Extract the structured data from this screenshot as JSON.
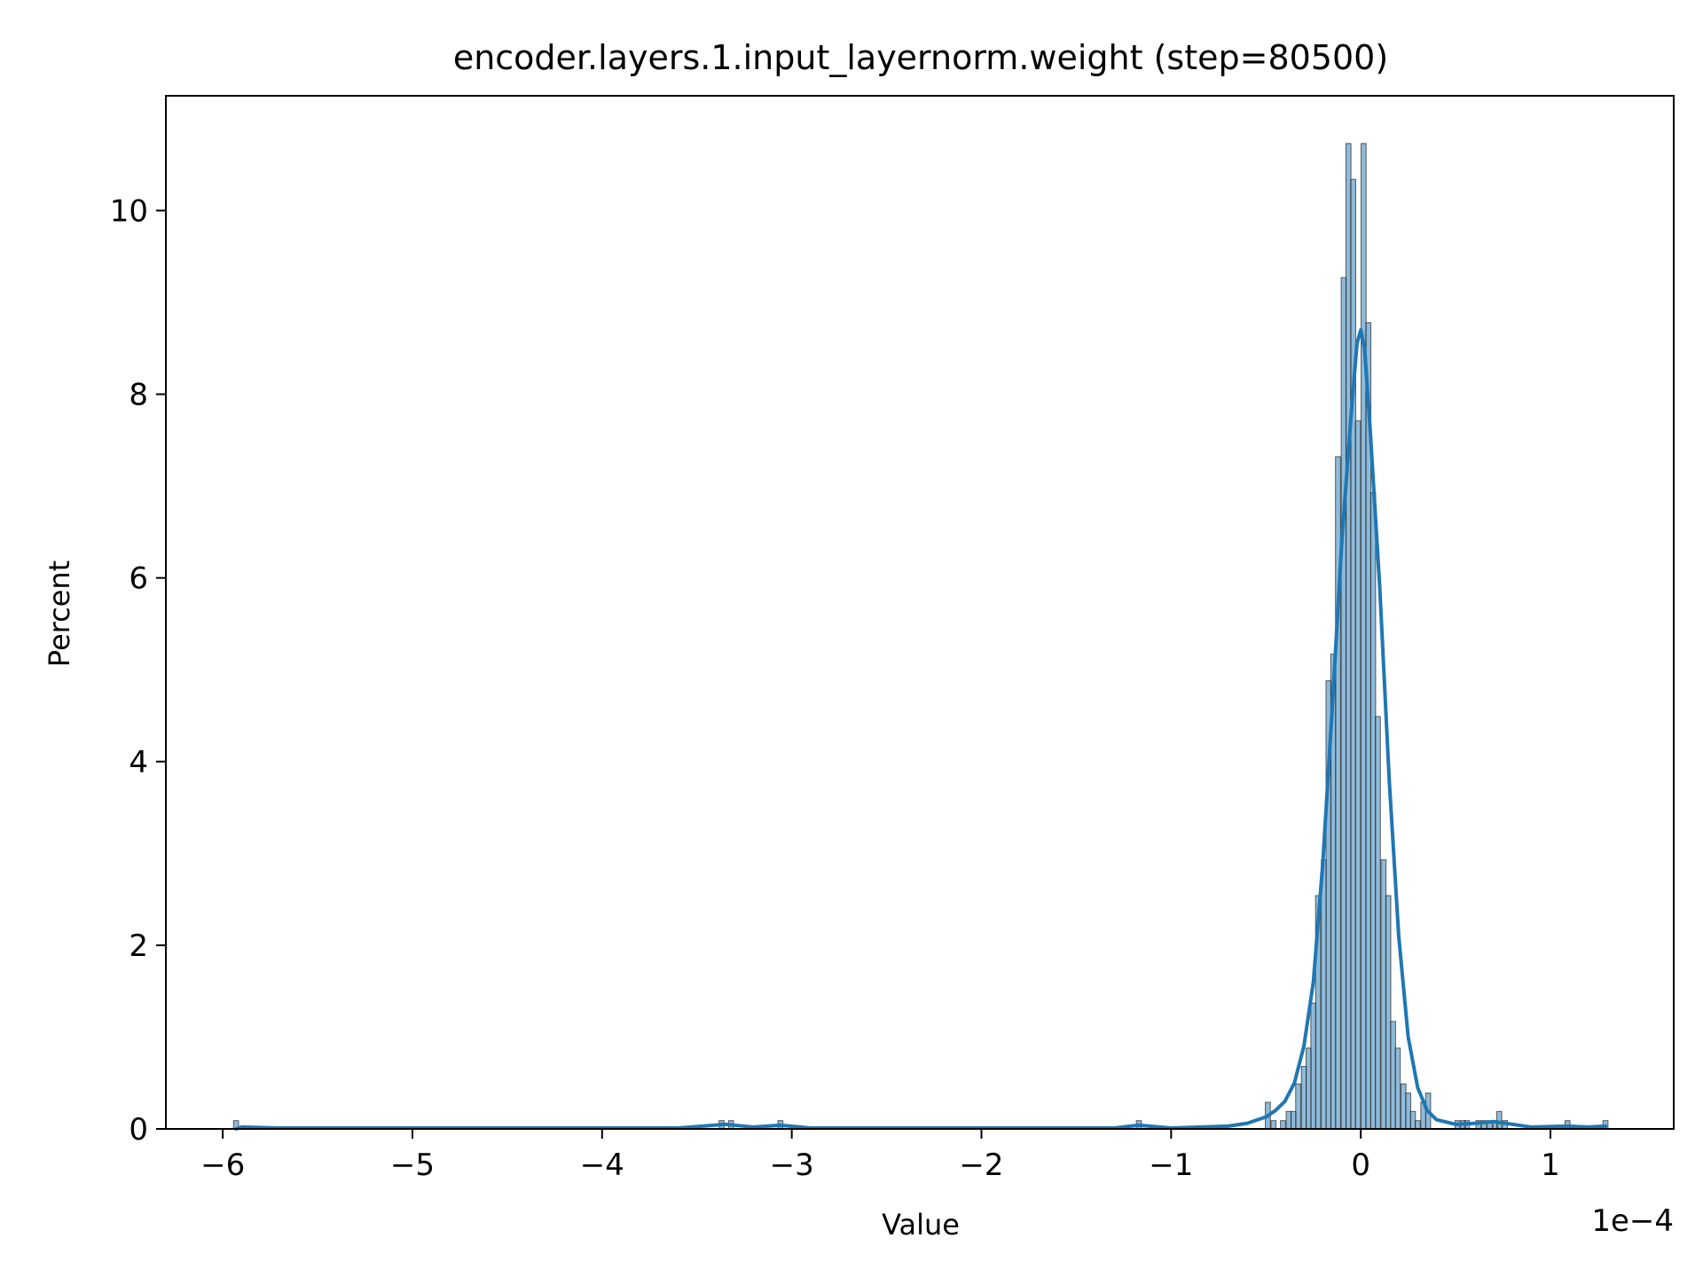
{
  "chart_data": {
    "type": "bar",
    "title": "encoder.layers.1.input_layernorm.weight (step=80500)",
    "xlabel": "Value",
    "ylabel": "Percent",
    "x_scale_note": "1e−4",
    "xlim": [
      -6.3,
      1.65
    ],
    "ylim": [
      0,
      11.25
    ],
    "xticks": [
      {
        "value": -6,
        "label": "−6"
      },
      {
        "value": -5,
        "label": "−5"
      },
      {
        "value": -4,
        "label": "−4"
      },
      {
        "value": -3,
        "label": "−3"
      },
      {
        "value": -2,
        "label": "−2"
      },
      {
        "value": -1,
        "label": "−1"
      },
      {
        "value": 0,
        "label": "0"
      },
      {
        "value": 1,
        "label": "1"
      }
    ],
    "yticks": [
      {
        "value": 0,
        "label": "0"
      },
      {
        "value": 2,
        "label": "2"
      },
      {
        "value": 4,
        "label": "4"
      },
      {
        "value": 6,
        "label": "6"
      },
      {
        "value": 8,
        "label": "8"
      },
      {
        "value": 10,
        "label": "10"
      }
    ],
    "grid": false,
    "legend": "none",
    "bar_color": "#1f77b4",
    "bar_alpha": 0.5,
    "kde_color": "#1f77b4",
    "bin_width": 0.0265,
    "bars": [
      {
        "x": -5.93,
        "y": 0.09
      },
      {
        "x": -3.37,
        "y": 0.09
      },
      {
        "x": -3.32,
        "y": 0.09
      },
      {
        "x": -3.06,
        "y": 0.09
      },
      {
        "x": -1.17,
        "y": 0.09
      },
      {
        "x": -0.49,
        "y": 0.29
      },
      {
        "x": -0.46,
        "y": 0.09
      },
      {
        "x": -0.41,
        "y": 0.09
      },
      {
        "x": -0.38,
        "y": 0.19
      },
      {
        "x": -0.355,
        "y": 0.19
      },
      {
        "x": -0.33,
        "y": 0.49
      },
      {
        "x": -0.3,
        "y": 0.68
      },
      {
        "x": -0.275,
        "y": 0.88
      },
      {
        "x": -0.25,
        "y": 1.37
      },
      {
        "x": -0.225,
        "y": 2.54
      },
      {
        "x": -0.195,
        "y": 2.93
      },
      {
        "x": -0.17,
        "y": 4.88
      },
      {
        "x": -0.145,
        "y": 5.17
      },
      {
        "x": -0.12,
        "y": 7.32
      },
      {
        "x": -0.09,
        "y": 9.27
      },
      {
        "x": -0.065,
        "y": 10.73
      },
      {
        "x": -0.04,
        "y": 10.34
      },
      {
        "x": -0.015,
        "y": 7.71
      },
      {
        "x": 0.015,
        "y": 10.73
      },
      {
        "x": 0.04,
        "y": 8.78
      },
      {
        "x": 0.065,
        "y": 6.93
      },
      {
        "x": 0.09,
        "y": 4.49
      },
      {
        "x": 0.12,
        "y": 2.93
      },
      {
        "x": 0.145,
        "y": 2.54
      },
      {
        "x": 0.17,
        "y": 1.17
      },
      {
        "x": 0.195,
        "y": 0.88
      },
      {
        "x": 0.225,
        "y": 0.49
      },
      {
        "x": 0.25,
        "y": 0.39
      },
      {
        "x": 0.275,
        "y": 0.19
      },
      {
        "x": 0.3,
        "y": 0.09
      },
      {
        "x": 0.33,
        "y": 0.29
      },
      {
        "x": 0.355,
        "y": 0.39
      },
      {
        "x": 0.51,
        "y": 0.09
      },
      {
        "x": 0.54,
        "y": 0.09
      },
      {
        "x": 0.56,
        "y": 0.09
      },
      {
        "x": 0.62,
        "y": 0.09
      },
      {
        "x": 0.65,
        "y": 0.09
      },
      {
        "x": 0.68,
        "y": 0.09
      },
      {
        "x": 0.71,
        "y": 0.09
      },
      {
        "x": 0.73,
        "y": 0.19
      },
      {
        "x": 0.76,
        "y": 0.09
      },
      {
        "x": 1.09,
        "y": 0.09
      },
      {
        "x": 1.29,
        "y": 0.09
      }
    ],
    "kde": [
      {
        "x": -5.93,
        "y": 0.0
      },
      {
        "x": -5.9,
        "y": 0.02
      },
      {
        "x": -5.7,
        "y": 0.01
      },
      {
        "x": -3.6,
        "y": 0.01
      },
      {
        "x": -3.35,
        "y": 0.05
      },
      {
        "x": -3.2,
        "y": 0.02
      },
      {
        "x": -3.06,
        "y": 0.04
      },
      {
        "x": -2.9,
        "y": 0.01
      },
      {
        "x": -1.3,
        "y": 0.01
      },
      {
        "x": -1.17,
        "y": 0.04
      },
      {
        "x": -1.0,
        "y": 0.01
      },
      {
        "x": -0.7,
        "y": 0.03
      },
      {
        "x": -0.6,
        "y": 0.06
      },
      {
        "x": -0.5,
        "y": 0.13
      },
      {
        "x": -0.45,
        "y": 0.2
      },
      {
        "x": -0.4,
        "y": 0.3
      },
      {
        "x": -0.35,
        "y": 0.5
      },
      {
        "x": -0.3,
        "y": 0.9
      },
      {
        "x": -0.25,
        "y": 1.6
      },
      {
        "x": -0.2,
        "y": 2.9
      },
      {
        "x": -0.15,
        "y": 4.6
      },
      {
        "x": -0.1,
        "y": 6.4
      },
      {
        "x": -0.05,
        "y": 7.8
      },
      {
        "x": -0.02,
        "y": 8.55
      },
      {
        "x": 0.0,
        "y": 8.7
      },
      {
        "x": 0.02,
        "y": 8.5
      },
      {
        "x": 0.05,
        "y": 7.6
      },
      {
        "x": 0.1,
        "y": 5.9
      },
      {
        "x": 0.15,
        "y": 3.8
      },
      {
        "x": 0.2,
        "y": 2.1
      },
      {
        "x": 0.25,
        "y": 1.0
      },
      {
        "x": 0.3,
        "y": 0.45
      },
      {
        "x": 0.35,
        "y": 0.2
      },
      {
        "x": 0.4,
        "y": 0.1
      },
      {
        "x": 0.5,
        "y": 0.05
      },
      {
        "x": 0.6,
        "y": 0.06
      },
      {
        "x": 0.7,
        "y": 0.08
      },
      {
        "x": 0.8,
        "y": 0.05
      },
      {
        "x": 0.9,
        "y": 0.02
      },
      {
        "x": 1.09,
        "y": 0.03
      },
      {
        "x": 1.2,
        "y": 0.02
      },
      {
        "x": 1.29,
        "y": 0.03
      }
    ]
  }
}
